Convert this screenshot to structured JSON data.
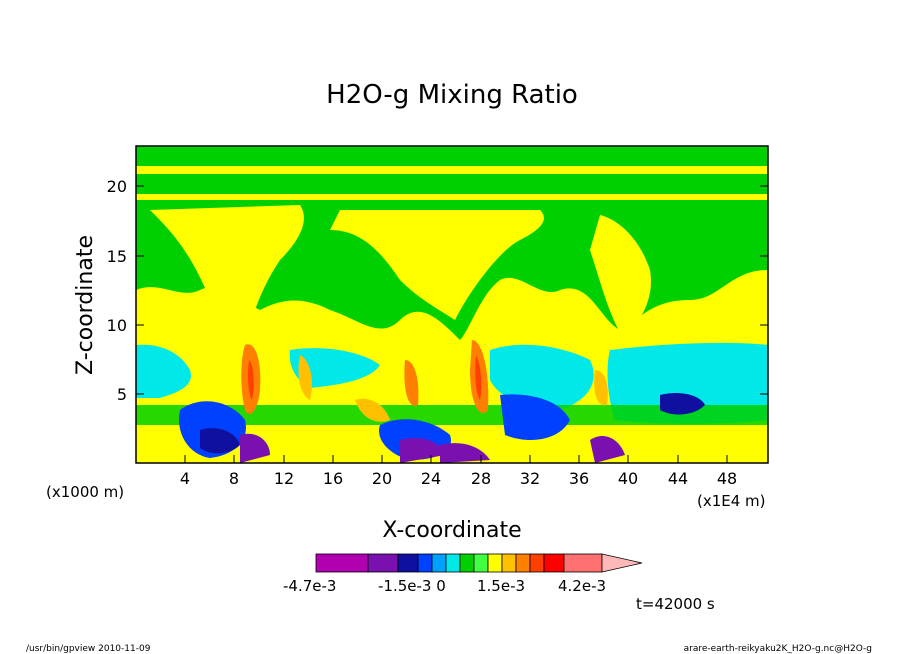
{
  "chart_data": {
    "type": "heatmap",
    "title": "H2O-g Mixing Ratio",
    "xlabel": "X-coordinate",
    "ylabel": "Z-coordinate",
    "x_unit_note": "(x1E4 m)",
    "y_unit_note": "(x1000 m)",
    "xlim": [
      0,
      51.5
    ],
    "ylim": [
      0,
      23
    ],
    "x_ticks": [
      "4",
      "8",
      "12",
      "16",
      "20",
      "24",
      "28",
      "32",
      "36",
      "40",
      "44",
      "48"
    ],
    "y_ticks": [
      "5",
      "10",
      "15",
      "20"
    ],
    "time_label": "t=42000 s",
    "colorbar": {
      "labels": [
        "-4.7e-3",
        "-1.5e-3 0",
        "1.5e-3",
        "4.2e-3"
      ],
      "colors": [
        "#b000b0",
        "#7a10b0",
        "#1010a0",
        "#0040ff",
        "#00a0ff",
        "#00e8e8",
        "#00d000",
        "#40ff40",
        "#ffff00",
        "#ffc000",
        "#ff8000",
        "#ff4000",
        "#ff0000",
        "#ff7070",
        "#ffb8b8"
      ]
    },
    "footer_left": "/usr/bin/gpview   2010-11-09",
    "footer_right": "arare-earth-reikyaku2K_H2O-g.nc@H2O-g"
  }
}
